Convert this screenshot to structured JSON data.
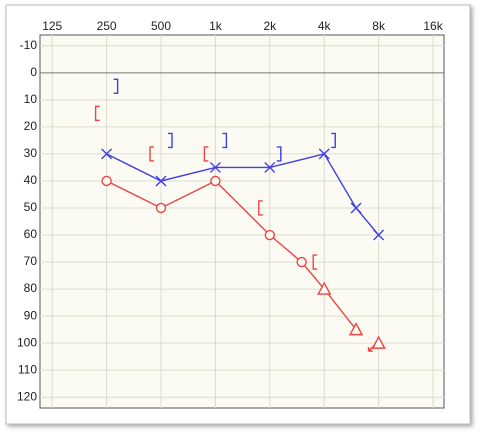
{
  "chart_data": {
    "type": "line",
    "xscale": "log",
    "xlim": [
      107,
      18400
    ],
    "xticks": [
      {
        "value": 125,
        "label": "125"
      },
      {
        "value": 250,
        "label": "250"
      },
      {
        "value": 500,
        "label": "500"
      },
      {
        "value": 1000,
        "label": "1k"
      },
      {
        "value": 2000,
        "label": "2k"
      },
      {
        "value": 4000,
        "label": "4k"
      },
      {
        "value": 8000,
        "label": "8k"
      },
      {
        "value": 16000,
        "label": "16k"
      }
    ],
    "ylim": [
      -14,
      124
    ],
    "y_inverted": true,
    "yticks": [
      -10,
      0,
      10,
      20,
      30,
      40,
      50,
      60,
      70,
      80,
      90,
      100,
      110,
      120
    ],
    "grid": true,
    "series": [
      {
        "color": "#3f3fe6",
        "marker": "x",
        "line": true,
        "x": [
          250,
          500,
          1000,
          2000,
          4000,
          6000,
          8000
        ],
        "values": [
          30,
          40,
          35,
          35,
          30,
          50,
          60
        ]
      },
      {
        "color": "#ee4444",
        "marker": "o-^",
        "line": true,
        "x": [
          250,
          500,
          1000,
          2000,
          3000,
          4000,
          6000
        ],
        "values": [
          40,
          50,
          40,
          60,
          70,
          80,
          95
        ],
        "markers": [
          "o",
          "o",
          "o",
          "o",
          "o",
          "^",
          "^"
        ]
      },
      {
        "color": "#ee4444",
        "marker": "^",
        "line": false,
        "no_response": true,
        "x": [
          8000
        ],
        "values": [
          100
        ]
      },
      {
        "color": "#3f3fe6",
        "marker": "]",
        "line": false,
        "x": [
          250,
          500,
          1000,
          2000,
          4000
        ],
        "values": [
          5,
          25,
          25,
          30,
          25
        ]
      },
      {
        "color": "#ee4444",
        "marker": "[",
        "line": false,
        "x": [
          250,
          500,
          1000,
          2000,
          4000
        ],
        "values": [
          15,
          30,
          30,
          50,
          70
        ]
      }
    ]
  }
}
